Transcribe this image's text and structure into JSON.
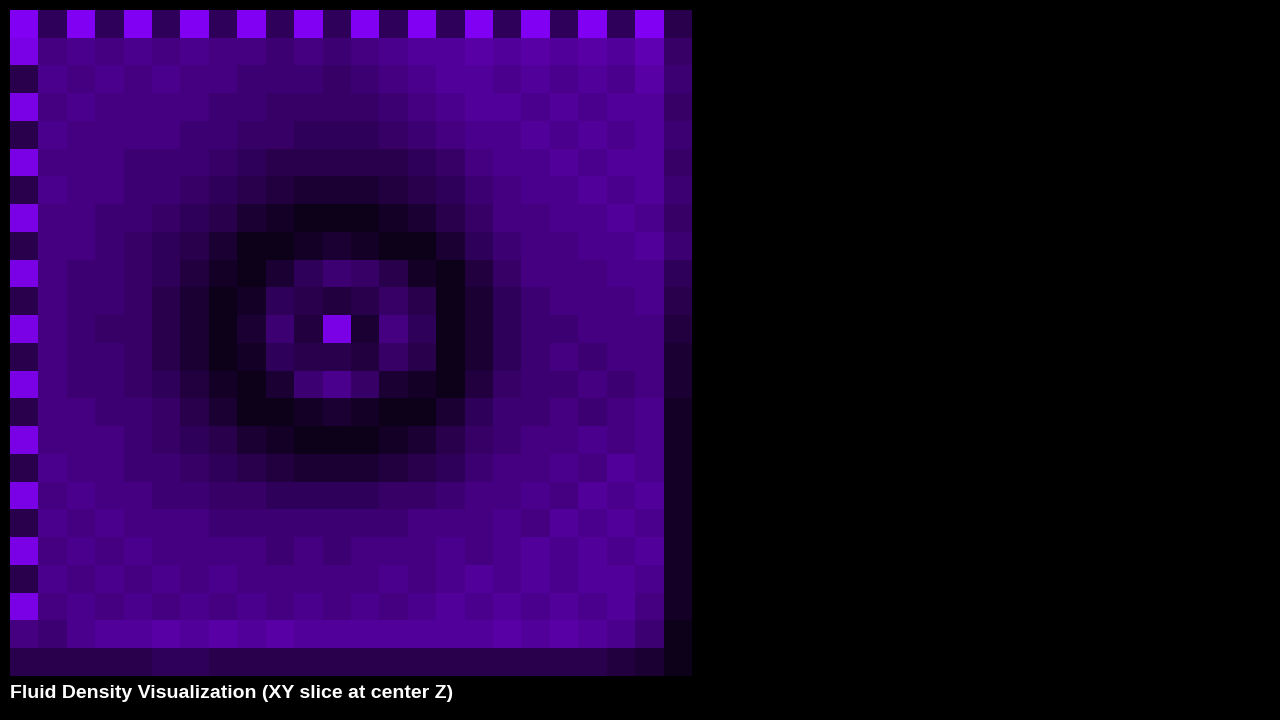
{
  "chart_data": {
    "type": "heatmap",
    "title": "Fluid Density Visualization (XY slice at center Z)",
    "color": "#8800ff",
    "tick_labels": false,
    "cell_range": [
      0,
      1
    ],
    "cells": [
      [
        0.95,
        0.35,
        0.95,
        0.35,
        0.95,
        0.35,
        0.95,
        0.35,
        0.95,
        0.35,
        0.95,
        0.35,
        0.95,
        0.35,
        0.95,
        0.35,
        0.95,
        0.35,
        0.95,
        0.35,
        0.95,
        0.35,
        0.95,
        0.3
      ],
      [
        0.9,
        0.5,
        0.55,
        0.5,
        0.55,
        0.5,
        0.55,
        0.5,
        0.5,
        0.45,
        0.5,
        0.45,
        0.5,
        0.55,
        0.6,
        0.6,
        0.65,
        0.6,
        0.65,
        0.6,
        0.65,
        0.6,
        0.7,
        0.4
      ],
      [
        0.3,
        0.55,
        0.5,
        0.55,
        0.5,
        0.55,
        0.5,
        0.5,
        0.45,
        0.45,
        0.45,
        0.4,
        0.45,
        0.5,
        0.55,
        0.6,
        0.6,
        0.55,
        0.6,
        0.55,
        0.6,
        0.55,
        0.65,
        0.45
      ],
      [
        0.9,
        0.5,
        0.55,
        0.5,
        0.5,
        0.5,
        0.5,
        0.45,
        0.45,
        0.4,
        0.4,
        0.4,
        0.4,
        0.45,
        0.5,
        0.55,
        0.6,
        0.6,
        0.55,
        0.6,
        0.55,
        0.6,
        0.6,
        0.4
      ],
      [
        0.3,
        0.55,
        0.5,
        0.5,
        0.5,
        0.5,
        0.45,
        0.45,
        0.4,
        0.4,
        0.35,
        0.35,
        0.35,
        0.4,
        0.45,
        0.5,
        0.55,
        0.55,
        0.6,
        0.55,
        0.6,
        0.55,
        0.6,
        0.45
      ],
      [
        0.9,
        0.5,
        0.5,
        0.5,
        0.45,
        0.45,
        0.45,
        0.4,
        0.35,
        0.3,
        0.3,
        0.3,
        0.3,
        0.3,
        0.35,
        0.4,
        0.5,
        0.55,
        0.55,
        0.6,
        0.55,
        0.6,
        0.6,
        0.4
      ],
      [
        0.3,
        0.55,
        0.5,
        0.5,
        0.45,
        0.45,
        0.4,
        0.35,
        0.3,
        0.25,
        0.2,
        0.2,
        0.2,
        0.25,
        0.3,
        0.35,
        0.45,
        0.5,
        0.55,
        0.55,
        0.6,
        0.55,
        0.6,
        0.45
      ],
      [
        0.9,
        0.5,
        0.5,
        0.45,
        0.45,
        0.4,
        0.35,
        0.3,
        0.2,
        0.15,
        0.1,
        0.1,
        0.1,
        0.15,
        0.2,
        0.3,
        0.4,
        0.5,
        0.5,
        0.55,
        0.55,
        0.6,
        0.55,
        0.4
      ],
      [
        0.3,
        0.5,
        0.5,
        0.45,
        0.4,
        0.35,
        0.3,
        0.2,
        0.1,
        0.1,
        0.15,
        0.2,
        0.15,
        0.1,
        0.1,
        0.2,
        0.35,
        0.45,
        0.5,
        0.5,
        0.55,
        0.55,
        0.6,
        0.45
      ],
      [
        0.9,
        0.5,
        0.45,
        0.45,
        0.4,
        0.35,
        0.25,
        0.15,
        0.1,
        0.2,
        0.35,
        0.45,
        0.4,
        0.3,
        0.15,
        0.1,
        0.25,
        0.4,
        0.5,
        0.5,
        0.5,
        0.55,
        0.55,
        0.35
      ],
      [
        0.3,
        0.5,
        0.45,
        0.45,
        0.4,
        0.3,
        0.2,
        0.1,
        0.15,
        0.35,
        0.3,
        0.25,
        0.3,
        0.4,
        0.3,
        0.1,
        0.2,
        0.35,
        0.45,
        0.5,
        0.5,
        0.5,
        0.55,
        0.3
      ],
      [
        0.9,
        0.5,
        0.45,
        0.4,
        0.4,
        0.3,
        0.2,
        0.1,
        0.2,
        0.45,
        0.25,
        0.9,
        0.2,
        0.5,
        0.35,
        0.1,
        0.2,
        0.35,
        0.45,
        0.45,
        0.5,
        0.5,
        0.5,
        0.25
      ],
      [
        0.3,
        0.5,
        0.45,
        0.45,
        0.4,
        0.3,
        0.2,
        0.1,
        0.15,
        0.35,
        0.3,
        0.3,
        0.25,
        0.4,
        0.3,
        0.1,
        0.2,
        0.35,
        0.45,
        0.5,
        0.45,
        0.5,
        0.5,
        0.2
      ],
      [
        0.9,
        0.5,
        0.45,
        0.45,
        0.4,
        0.35,
        0.25,
        0.15,
        0.1,
        0.2,
        0.45,
        0.55,
        0.4,
        0.2,
        0.15,
        0.1,
        0.25,
        0.4,
        0.45,
        0.45,
        0.5,
        0.45,
        0.5,
        0.2
      ],
      [
        0.3,
        0.5,
        0.5,
        0.45,
        0.45,
        0.4,
        0.3,
        0.2,
        0.1,
        0.1,
        0.15,
        0.2,
        0.15,
        0.1,
        0.1,
        0.2,
        0.35,
        0.45,
        0.45,
        0.5,
        0.45,
        0.5,
        0.55,
        0.15
      ],
      [
        0.9,
        0.5,
        0.5,
        0.5,
        0.45,
        0.4,
        0.35,
        0.3,
        0.2,
        0.15,
        0.1,
        0.1,
        0.1,
        0.15,
        0.2,
        0.3,
        0.4,
        0.45,
        0.5,
        0.5,
        0.55,
        0.5,
        0.55,
        0.15
      ],
      [
        0.3,
        0.55,
        0.5,
        0.5,
        0.45,
        0.45,
        0.4,
        0.35,
        0.3,
        0.25,
        0.2,
        0.2,
        0.2,
        0.25,
        0.3,
        0.35,
        0.45,
        0.5,
        0.5,
        0.55,
        0.5,
        0.6,
        0.55,
        0.15
      ],
      [
        0.9,
        0.5,
        0.55,
        0.5,
        0.5,
        0.45,
        0.45,
        0.4,
        0.4,
        0.35,
        0.35,
        0.35,
        0.35,
        0.4,
        0.4,
        0.45,
        0.5,
        0.5,
        0.55,
        0.5,
        0.6,
        0.55,
        0.6,
        0.15
      ],
      [
        0.3,
        0.55,
        0.5,
        0.55,
        0.5,
        0.5,
        0.5,
        0.45,
        0.45,
        0.45,
        0.45,
        0.45,
        0.45,
        0.45,
        0.5,
        0.5,
        0.5,
        0.55,
        0.5,
        0.6,
        0.55,
        0.6,
        0.55,
        0.15
      ],
      [
        0.9,
        0.5,
        0.55,
        0.5,
        0.55,
        0.5,
        0.5,
        0.5,
        0.5,
        0.45,
        0.5,
        0.45,
        0.5,
        0.5,
        0.5,
        0.55,
        0.5,
        0.55,
        0.6,
        0.55,
        0.6,
        0.55,
        0.6,
        0.15
      ],
      [
        0.3,
        0.55,
        0.5,
        0.55,
        0.5,
        0.55,
        0.5,
        0.55,
        0.5,
        0.5,
        0.5,
        0.5,
        0.5,
        0.55,
        0.5,
        0.55,
        0.6,
        0.55,
        0.6,
        0.55,
        0.6,
        0.6,
        0.55,
        0.15
      ],
      [
        0.9,
        0.5,
        0.55,
        0.5,
        0.55,
        0.5,
        0.55,
        0.5,
        0.55,
        0.5,
        0.55,
        0.5,
        0.55,
        0.5,
        0.55,
        0.6,
        0.55,
        0.6,
        0.55,
        0.6,
        0.55,
        0.6,
        0.5,
        0.15
      ],
      [
        0.5,
        0.45,
        0.55,
        0.6,
        0.6,
        0.65,
        0.6,
        0.65,
        0.6,
        0.65,
        0.6,
        0.6,
        0.6,
        0.6,
        0.6,
        0.6,
        0.6,
        0.65,
        0.6,
        0.65,
        0.6,
        0.55,
        0.45,
        0.1
      ],
      [
        0.3,
        0.3,
        0.3,
        0.3,
        0.3,
        0.35,
        0.35,
        0.3,
        0.3,
        0.3,
        0.3,
        0.3,
        0.3,
        0.3,
        0.3,
        0.3,
        0.3,
        0.3,
        0.3,
        0.3,
        0.3,
        0.25,
        0.2,
        0.1
      ]
    ]
  }
}
